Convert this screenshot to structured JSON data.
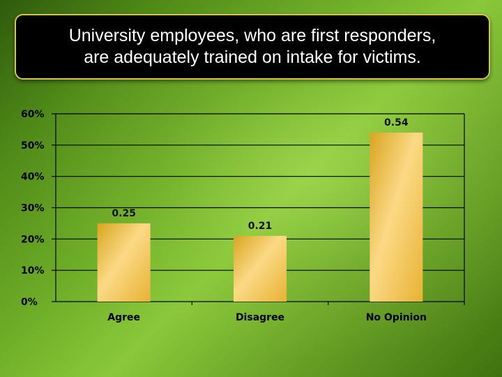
{
  "chart_data": {
    "type": "bar",
    "title": "University employees, who are first responders, are adequately trained on intake for victims.",
    "title_lines": [
      "University employees, who are first responders,",
      "are adequately trained on intake for victims."
    ],
    "categories": [
      "Agree",
      "Disagree",
      "No Opinion"
    ],
    "values": [
      0.25,
      0.21,
      0.54
    ],
    "value_labels": [
      "0.25",
      "0.21",
      "0.54"
    ],
    "yticks": [
      0,
      0.1,
      0.2,
      0.3,
      0.4,
      0.5,
      0.6
    ],
    "ytick_labels": [
      "0%",
      "10%",
      "20%",
      "30%",
      "40%",
      "50%",
      "60%"
    ],
    "ylim": [
      0,
      0.6
    ],
    "xlabel": "",
    "ylabel": "",
    "grid": true,
    "legend": "none",
    "colors": {
      "bar_light": "#fbd985",
      "bar_dark": "#d9a520",
      "title_bg": "#000000",
      "title_border": "#d7c44a",
      "grid": "#000000"
    }
  }
}
